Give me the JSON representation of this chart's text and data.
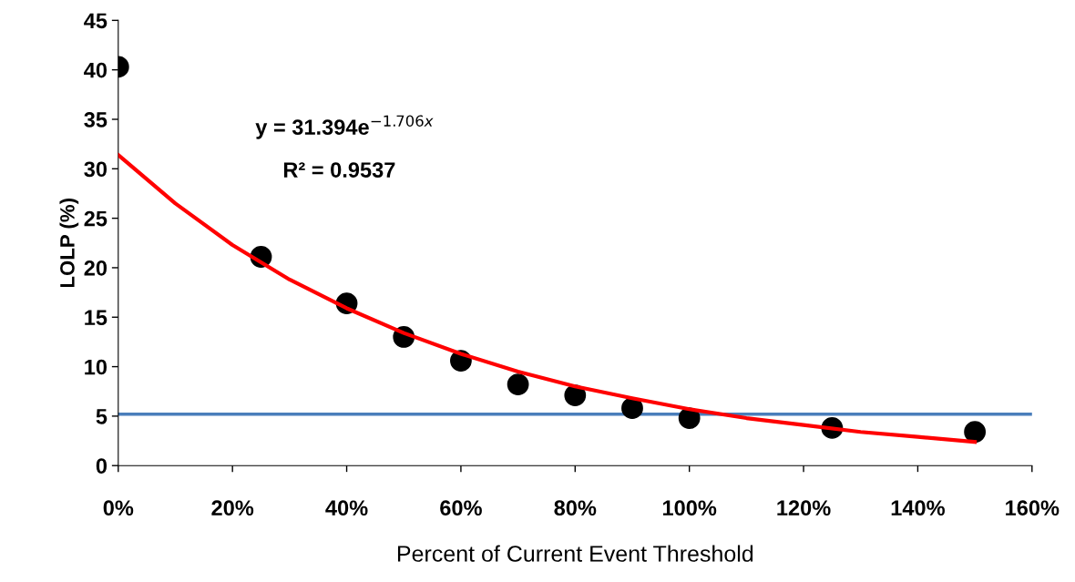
{
  "chart_data": {
    "type": "scatter",
    "xlabel": "Percent of Current Event Threshold",
    "ylabel": "LOLP (%)",
    "x": [
      0,
      25,
      40,
      50,
      60,
      70,
      80,
      90,
      100,
      125,
      150
    ],
    "series": [
      {
        "color": "#000000",
        "marker": "circle",
        "values": [
          40.3,
          21.1,
          16.4,
          13.0,
          10.6,
          8.2,
          7.1,
          5.8,
          4.8,
          3.8,
          3.4
        ]
      },
      {
        "type": "line",
        "color": "#ff0000",
        "marker": "none",
        "line_style": "solid",
        "x": [
          0,
          10,
          20,
          30,
          40,
          50,
          60,
          70,
          80,
          90,
          100,
          110,
          120,
          130,
          140,
          150
        ],
        "values": [
          31.4,
          26.5,
          22.3,
          18.8,
          15.9,
          13.4,
          11.3,
          9.5,
          8.0,
          6.8,
          5.7,
          4.8,
          4.1,
          3.4,
          2.9,
          2.4
        ]
      }
    ],
    "ref_lines": [
      {
        "axis": "y",
        "value": 5.2,
        "color": "#4a7ebb"
      }
    ],
    "annotations": [
      "y = 31.394e$^{−1.706x}$",
      "R² = 0.9537"
    ],
    "xlim": [
      0,
      160
    ],
    "ylim": [
      0,
      45
    ],
    "xticks": [
      {
        "value": 0,
        "label": "0%"
      },
      {
        "value": 20,
        "label": "20%"
      },
      {
        "value": 40,
        "label": "40%"
      },
      {
        "value": 60,
        "label": "60%"
      },
      {
        "value": 80,
        "label": "80%"
      },
      {
        "value": 100,
        "label": "100%"
      },
      {
        "value": 120,
        "label": "120%"
      },
      {
        "value": 140,
        "label": "140%"
      },
      {
        "value": 160,
        "label": "160%"
      }
    ],
    "yticks": [
      0,
      5,
      10,
      15,
      20,
      25,
      30,
      35,
      40,
      45
    ],
    "grid": false,
    "legend": false
  }
}
